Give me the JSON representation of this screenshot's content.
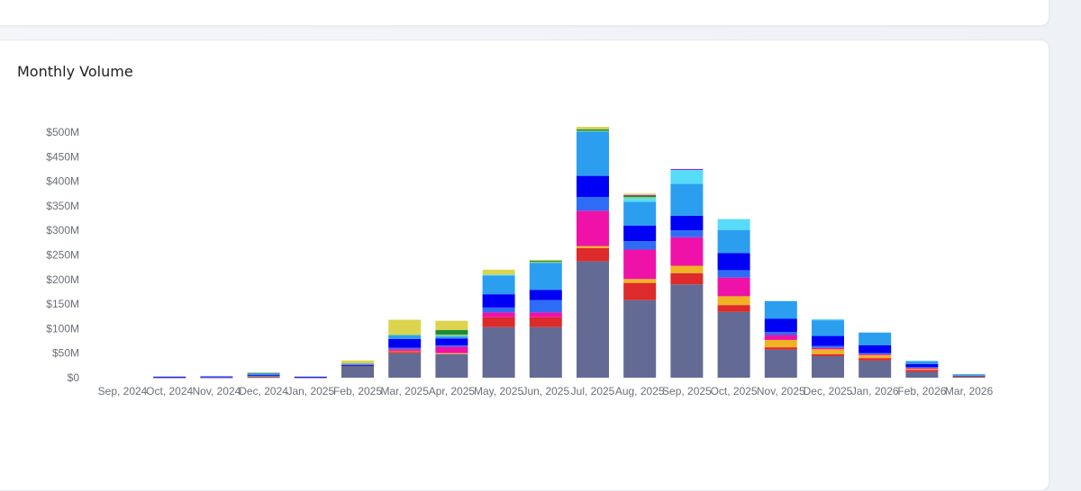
{
  "card": {
    "title": "Monthly Volume"
  },
  "chart_data": {
    "type": "bar",
    "stacked": true,
    "title": "Monthly Volume",
    "xlabel": "",
    "ylabel": "",
    "ylim": [
      0,
      500
    ],
    "y_unit": "$M",
    "y_ticks": [
      0,
      50,
      100,
      150,
      200,
      250,
      300,
      350,
      400,
      450,
      500
    ],
    "y_tick_labels": [
      "$0",
      "$50M",
      "$100M",
      "$150M",
      "$200M",
      "$250M",
      "$300M",
      "$350M",
      "$400M",
      "$450M",
      "$500M"
    ],
    "grid": false,
    "legend": "none",
    "categories": [
      "Sep, 2024",
      "Oct, 2024",
      "Nov, 2024",
      "Dec, 2024",
      "Jan, 2025",
      "Feb, 2025",
      "Mar, 2025",
      "Apr, 2025",
      "May, 2025",
      "Jun, 2025",
      "Jul, 2025",
      "Aug, 2025",
      "Sep, 2025",
      "Oct, 2025",
      "Nov, 2025",
      "Dec, 2025",
      "Jan, 2026",
      "Feb, 2026",
      "Mar, 2026"
    ],
    "series": [
      {
        "color": "#636b94",
        "values": [
          0,
          0.5,
          0.5,
          1,
          0.5,
          24,
          50,
          48,
          103,
          103,
          237,
          158,
          190,
          134,
          57,
          44,
          35,
          12,
          3
        ]
      },
      {
        "color": "#dd2a2a",
        "values": [
          0,
          0.3,
          0.3,
          1,
          0.3,
          1,
          3,
          0,
          20,
          20,
          27,
          35,
          23,
          14,
          5,
          4,
          5,
          4,
          1
        ]
      },
      {
        "color": "#f0b323",
        "values": [
          0,
          0,
          0,
          1,
          0,
          0,
          1,
          2,
          0,
          0,
          4,
          8,
          15,
          18,
          15,
          10,
          6,
          2,
          0
        ]
      },
      {
        "color": "#ee12a8",
        "values": [
          0,
          0,
          0,
          0,
          0,
          0,
          4,
          13,
          10,
          10,
          72,
          60,
          58,
          38,
          10,
          3,
          2,
          2,
          0
        ]
      },
      {
        "color": "#2f6cf6",
        "values": [
          0,
          0.4,
          0.4,
          1,
          0.3,
          0,
          3,
          3,
          10,
          25,
          28,
          17,
          14,
          15,
          6,
          4,
          2,
          2,
          0
        ]
      },
      {
        "color": "#0000f5",
        "values": [
          0,
          1,
          1.5,
          2,
          1,
          1,
          18,
          14,
          27,
          21,
          43,
          32,
          30,
          35,
          27,
          20,
          16,
          6,
          0
        ]
      },
      {
        "color": "#2b9ef0",
        "values": [
          0,
          0,
          0,
          4,
          0,
          3,
          7,
          4,
          38,
          55,
          90,
          48,
          65,
          47,
          36,
          32,
          26,
          6,
          3
        ]
      },
      {
        "color": "#56dcf8",
        "values": [
          0,
          0,
          0,
          0,
          0,
          0,
          0,
          0,
          2,
          0,
          0,
          6,
          28,
          22,
          0,
          2,
          0,
          0,
          0
        ]
      },
      {
        "color": "#7fcf95",
        "values": [
          0,
          0,
          0,
          0,
          0,
          0,
          2,
          4,
          0,
          2,
          2,
          4,
          0,
          0,
          0,
          0,
          0,
          0,
          0
        ]
      },
      {
        "color": "#1c8a32",
        "values": [
          0,
          0,
          0,
          0,
          0,
          0,
          0,
          9,
          0,
          2,
          3,
          2,
          0,
          0,
          0,
          0,
          0,
          0,
          0
        ]
      },
      {
        "color": "#8a2be2",
        "values": [
          0,
          0,
          0,
          0,
          0,
          0,
          0,
          0,
          0,
          0,
          0,
          2,
          2,
          0,
          0,
          0,
          0,
          0,
          0
        ]
      },
      {
        "color": "#dcd44f",
        "values": [
          0,
          0,
          0,
          1,
          0,
          6,
          30,
          19,
          10,
          2,
          5,
          3,
          0,
          0,
          0,
          0,
          0,
          0,
          0
        ]
      }
    ]
  }
}
